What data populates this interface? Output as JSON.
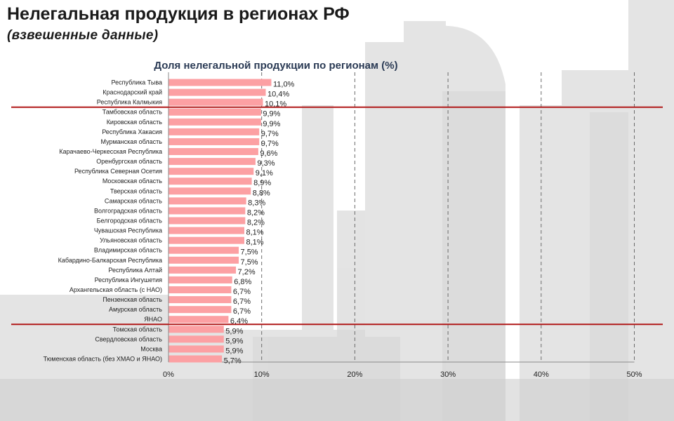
{
  "header": {
    "title": "Нелегальная продукция в регионах РФ",
    "subtitle": "(взвешенные  данные)"
  },
  "chart_data": {
    "type": "bar",
    "orientation": "horizontal",
    "title": "Доля нелегальной продукции по регионам (%)",
    "xlabel": "",
    "ylabel": "",
    "xlim": [
      0,
      50
    ],
    "x_ticks": [
      "0%",
      "10%",
      "20%",
      "30%",
      "40%",
      "50%"
    ],
    "grid": "vertical dashed",
    "bar_color": "#fca0a3",
    "separator_color": "#b01818",
    "categories": [
      "Республика Тыва",
      "Краснодарский край",
      "Республика Калмыкия",
      "Тамбовская область",
      "Кировская область",
      "Республика Хакасия",
      "Мурманская область",
      "Карачаево-Черкесская Республика",
      "Оренбургская область",
      "Республика Северная Осетия",
      "Московская область",
      "Тверская область",
      "Самарская область",
      "Волгоградская область",
      "Белгородская область",
      "Чувашская Республика",
      "Ульяновская область",
      "Владимирская область",
      "Кабардино-Балкарская Республика",
      "Республика Алтай",
      "Республика Ингушетия",
      "Архангельская область (с НАО)",
      "Пензенская область",
      "Амурская область",
      "ЯНАО",
      "Томская область",
      "Свердловская область",
      "Москва",
      "Тюменская область (без ХМАО и ЯНАО)"
    ],
    "values": [
      11.0,
      10.4,
      10.1,
      9.9,
      9.9,
      9.7,
      9.7,
      9.6,
      9.3,
      9.1,
      8.9,
      8.8,
      8.3,
      8.2,
      8.2,
      8.1,
      8.1,
      7.5,
      7.5,
      7.2,
      6.8,
      6.7,
      6.7,
      6.7,
      6.4,
      5.9,
      5.9,
      5.9,
      5.7
    ],
    "value_labels": [
      "11,0%",
      "10,4%",
      "10,1%",
      "9,9%",
      "9,9%",
      "9,7%",
      "9,7%",
      "9,6%",
      "9,3%",
      "9,1%",
      "8,9%",
      "8,8%",
      "8,3%",
      "8,2%",
      "8,2%",
      "8,1%",
      "8,1%",
      "7,5%",
      "7,5%",
      "7,2%",
      "6,8%",
      "6,7%",
      "6,7%",
      "6,7%",
      "6,4%",
      "5,9%",
      "5,9%",
      "5,9%",
      "5,7%"
    ],
    "separators_after_index": [
      2,
      24
    ]
  }
}
